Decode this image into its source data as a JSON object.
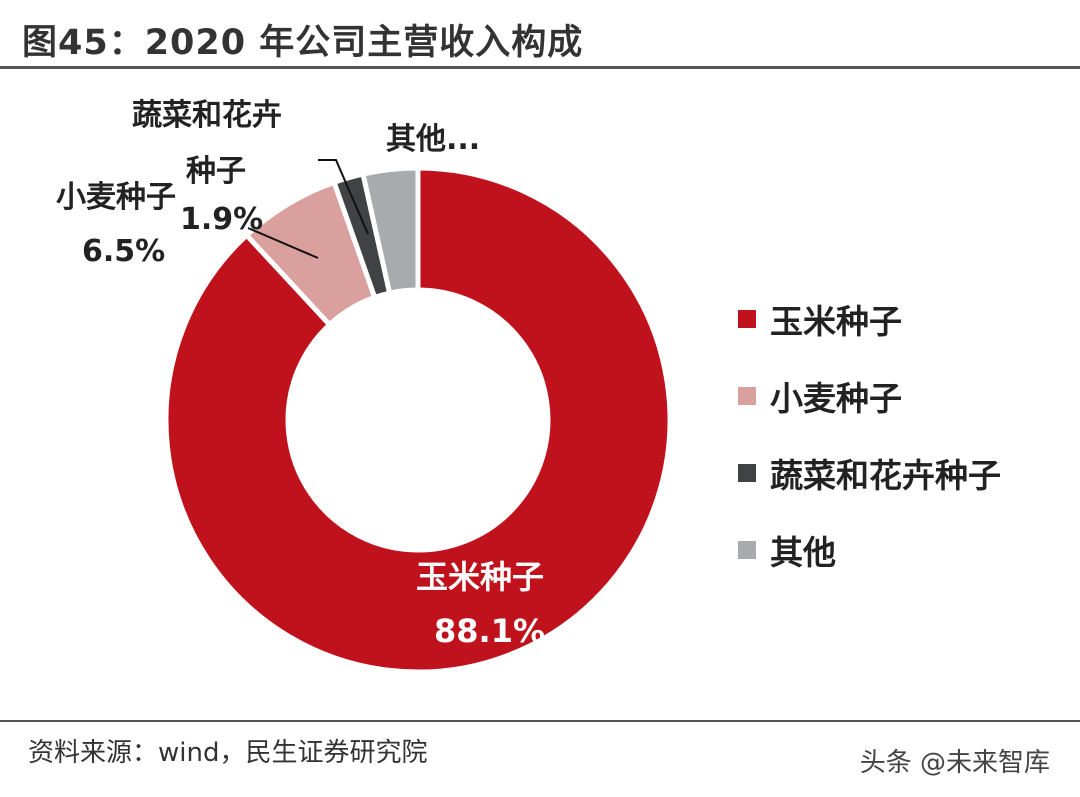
{
  "header": {
    "title": "图45：2020 年公司主营收入构成"
  },
  "footer": {
    "source": "资料来源：wind，民生证券研究院",
    "watermark": "头条 @未来智库"
  },
  "chart_data": {
    "type": "pie",
    "donut": true,
    "categories": [
      "玉米种子",
      "小麦种子",
      "蔬菜和花卉种子",
      "其他"
    ],
    "values": [
      88.1,
      6.5,
      1.9,
      3.5
    ],
    "colors": [
      "#C0121C",
      "#D9A09E",
      "#404244",
      "#A8AAAD"
    ],
    "legend_position": "right",
    "data_labels": {
      "corn_name": "玉米种子",
      "corn_value": "88.1%",
      "wheat_name": "小麦种子",
      "wheat_value": "6.5%",
      "veg_name_line1": "蔬菜和花卉",
      "veg_name_line2": "种子",
      "veg_value": "1.9%",
      "other_name": "其他..."
    }
  }
}
